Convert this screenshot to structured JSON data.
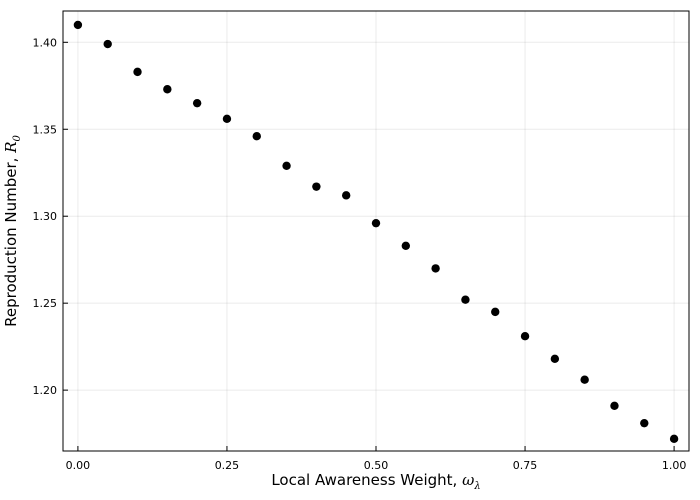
{
  "chart_data": {
    "type": "scatter",
    "title": "",
    "xlabel": "Local Awareness Weight, ",
    "xlabel_symbol": "ω",
    "xlabel_subscript": "λ",
    "ylabel": "Reproduction Number, ",
    "ylabel_symbol": "R",
    "ylabel_subscript": "0",
    "xlim": [
      -0.025,
      1.025
    ],
    "ylim": [
      1.165,
      1.418
    ],
    "xticks": [
      "0.00",
      "0.25",
      "0.50",
      "0.75",
      "1.00"
    ],
    "yticks": [
      "1.20",
      "1.25",
      "1.30",
      "1.35",
      "1.40"
    ],
    "grid": true,
    "legend": "none",
    "marker_color": "#000000",
    "series": [
      {
        "x": [
          0.0,
          0.05,
          0.1,
          0.15,
          0.2,
          0.25,
          0.3,
          0.35,
          0.4,
          0.45,
          0.5,
          0.55,
          0.6,
          0.65,
          0.7,
          0.75,
          0.8,
          0.85,
          0.9,
          0.95,
          1.0
        ],
        "y": [
          1.41,
          1.399,
          1.383,
          1.373,
          1.365,
          1.356,
          1.346,
          1.329,
          1.317,
          1.312,
          1.296,
          1.283,
          1.27,
          1.252,
          1.245,
          1.231,
          1.218,
          1.206,
          1.191,
          1.181,
          1.172
        ]
      }
    ]
  }
}
